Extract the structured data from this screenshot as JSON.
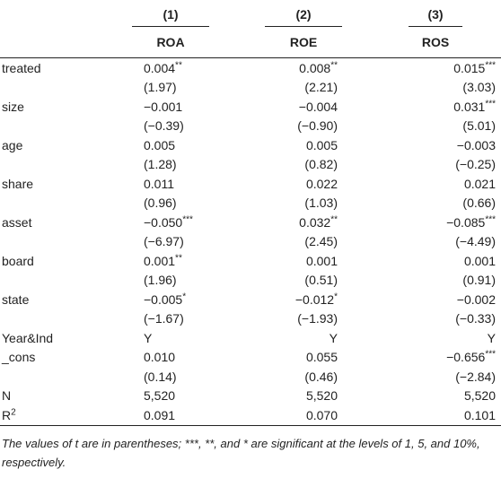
{
  "header": {
    "col_numbers": [
      "(1)",
      "(2)",
      "(3)"
    ],
    "col_vars": [
      "ROA",
      "ROE",
      "ROS"
    ]
  },
  "rows": [
    {
      "label": "treated",
      "c1": "0.004",
      "c1s": "**",
      "c2": "0.008",
      "c2s": "**",
      "c3": "0.015",
      "c3s": "***"
    },
    {
      "label": "",
      "c1": "(1.97)",
      "c1s": "",
      "c2": "(2.21)",
      "c2s": "",
      "c3": "(3.03)",
      "c3s": ""
    },
    {
      "label": "size",
      "c1": "−0.001",
      "c1s": "",
      "c2": "−0.004",
      "c2s": "",
      "c3": "0.031",
      "c3s": "***"
    },
    {
      "label": "",
      "c1": "(−0.39)",
      "c1s": "",
      "c2": "(−0.90)",
      "c2s": "",
      "c3": "(5.01)",
      "c3s": ""
    },
    {
      "label": "age",
      "c1": "0.005",
      "c1s": "",
      "c2": "0.005",
      "c2s": "",
      "c3": "−0.003",
      "c3s": ""
    },
    {
      "label": "",
      "c1": "(1.28)",
      "c1s": "",
      "c2": "(0.82)",
      "c2s": "",
      "c3": "(−0.25)",
      "c3s": ""
    },
    {
      "label": "share",
      "c1": "0.011",
      "c1s": "",
      "c2": "0.022",
      "c2s": "",
      "c3": "0.021",
      "c3s": ""
    },
    {
      "label": "",
      "c1": "(0.96)",
      "c1s": "",
      "c2": "(1.03)",
      "c2s": "",
      "c3": "(0.66)",
      "c3s": ""
    },
    {
      "label": "asset",
      "c1": "−0.050",
      "c1s": "***",
      "c2": "0.032",
      "c2s": "**",
      "c3": "−0.085",
      "c3s": "***"
    },
    {
      "label": "",
      "c1": "(−6.97)",
      "c1s": "",
      "c2": "(2.45)",
      "c2s": "",
      "c3": "(−4.49)",
      "c3s": ""
    },
    {
      "label": "board",
      "c1": "0.001",
      "c1s": "**",
      "c2": "0.001",
      "c2s": "",
      "c3": "0.001",
      "c3s": ""
    },
    {
      "label": "",
      "c1": "(1.96)",
      "c1s": "",
      "c2": "(0.51)",
      "c2s": "",
      "c3": "(0.91)",
      "c3s": ""
    },
    {
      "label": "state",
      "c1": "−0.005",
      "c1s": "*",
      "c2": "−0.012",
      "c2s": "*",
      "c3": "−0.002",
      "c3s": ""
    },
    {
      "label": "",
      "c1": "(−1.67)",
      "c1s": "",
      "c2": "(−1.93)",
      "c2s": "",
      "c3": "(−0.33)",
      "c3s": ""
    },
    {
      "label": "Year&Ind",
      "c1": "Y",
      "c1s": "",
      "c2": "Y",
      "c2s": "",
      "c3": "Y",
      "c3s": ""
    },
    {
      "label": "_cons",
      "c1": "0.010",
      "c1s": "",
      "c2": "0.055",
      "c2s": "",
      "c3": "−0.656",
      "c3s": "***"
    },
    {
      "label": "",
      "c1": "(0.14)",
      "c1s": "",
      "c2": "(0.46)",
      "c2s": "",
      "c3": "(−2.84)",
      "c3s": ""
    },
    {
      "label": "N",
      "c1": "5,520",
      "c1s": "",
      "c2": "5,520",
      "c2s": "",
      "c3": "5,520",
      "c3s": ""
    },
    {
      "label": "R",
      "label_sup": "2",
      "c1": "0.091",
      "c1s": "",
      "c2": "0.070",
      "c2s": "",
      "c3": "0.101",
      "c3s": ""
    }
  ],
  "note": "The values of t are in parentheses; ***, **, and * are significant at the levels of 1, 5, and 10%, respectively."
}
